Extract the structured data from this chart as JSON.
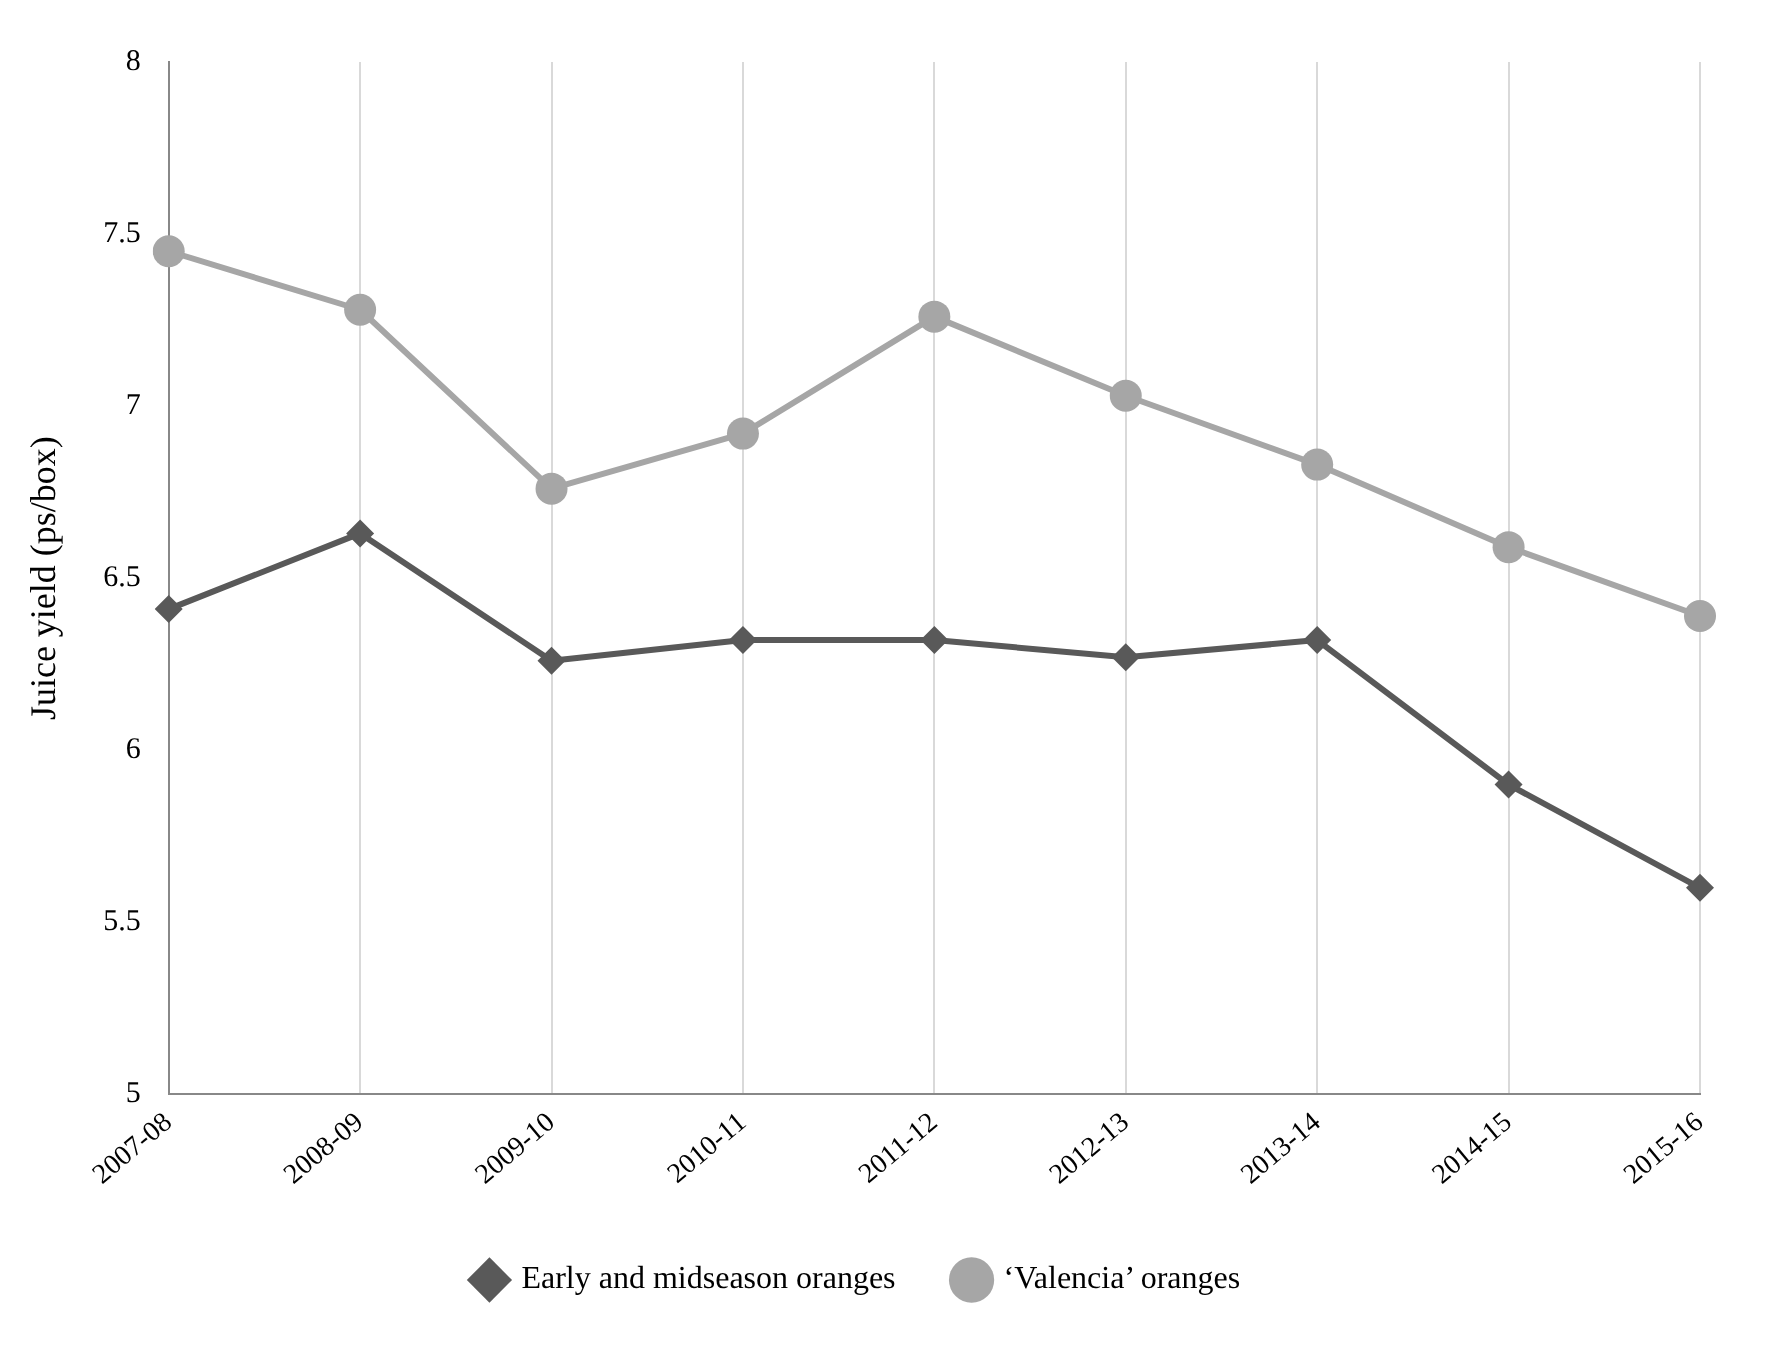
{
  "chart_data": {
    "type": "line",
    "ylabel": "Juice yield (ps/box)",
    "categories": [
      "2007-08",
      "2008-09",
      "2009-10",
      "2010-11",
      "2011-12",
      "2012-13",
      "2013-14",
      "2014-15",
      "2015-16"
    ],
    "series": [
      {
        "name": "Early and midseason oranges",
        "color": "#595959",
        "marker": "diamond",
        "values": [
          6.41,
          6.63,
          6.26,
          6.32,
          6.32,
          6.27,
          6.32,
          5.9,
          5.6
        ]
      },
      {
        "name": "‘Valencia’ oranges",
        "color": "#a6a6a6",
        "marker": "circle",
        "values": [
          7.45,
          7.28,
          6.76,
          6.92,
          7.26,
          7.03,
          6.83,
          6.59,
          6.39
        ]
      }
    ],
    "ylim": [
      5,
      8
    ],
    "yticks": [
      5,
      5.5,
      6,
      6.5,
      7,
      7.5,
      8
    ],
    "grid": "x",
    "legend": "bottom"
  }
}
